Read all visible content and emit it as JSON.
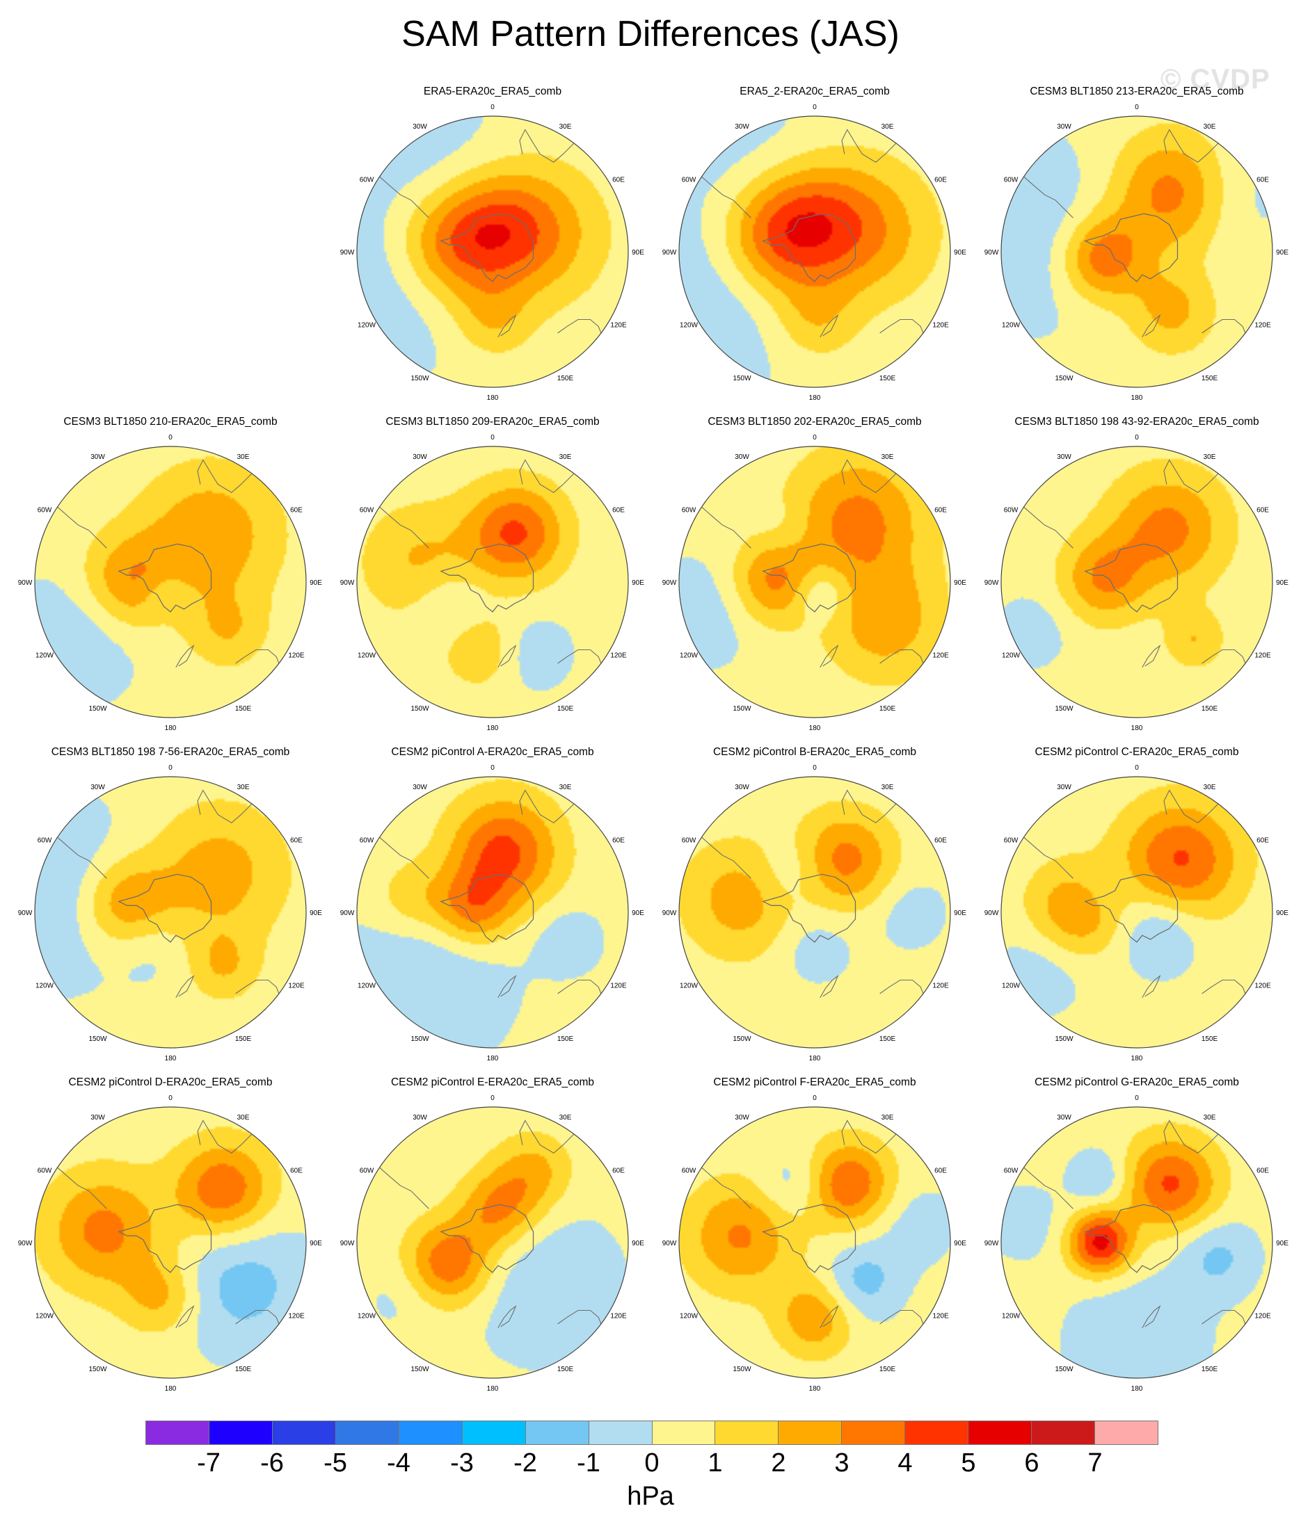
{
  "title": "SAM Pattern Differences (JAS)",
  "watermark": "© CVDP",
  "units": "hPa",
  "lon_labels": [
    "0",
    "30E",
    "60E",
    "90E",
    "120E",
    "150E",
    "180",
    "150W",
    "120W",
    "90W",
    "60W",
    "30W"
  ],
  "colors": {
    "land_outline": "#6e6e6e",
    "circle": "#444444",
    "background_level": "#fff58f"
  },
  "colorbar": {
    "colors": [
      "#8a2be2",
      "#1e00ff",
      "#2b3fe6",
      "#3078e6",
      "#1e90ff",
      "#00bfff",
      "#73c7f2",
      "#b2ddf1",
      "#fff58f",
      "#ffd92f",
      "#ffaa00",
      "#ff7700",
      "#ff3300",
      "#e60000",
      "#cc1a1a",
      "#ffaaaa"
    ],
    "ticks": [
      "-7",
      "-6",
      "-5",
      "-4",
      "-3",
      "-2",
      "-1",
      "0",
      "1",
      "2",
      "3",
      "4",
      "5",
      "6",
      "7"
    ]
  },
  "chart_data": {
    "type": "map",
    "projection": "south polar stereographic",
    "variable": "SAM pattern difference",
    "season": "JAS",
    "levels": [
      -7,
      -6,
      -5,
      -4,
      -3,
      -2,
      -1,
      0,
      1,
      2,
      3,
      4,
      5,
      6,
      7
    ],
    "units": "hPa",
    "panels": [
      {
        "title": "ERA5-ERA20c_ERA5_comb",
        "features": [
          {
            "kind": "low",
            "lon": -75,
            "colat": 0.78,
            "amp": -1.2,
            "width": 0.5
          },
          {
            "kind": "low",
            "lon": -150,
            "colat": 0.85,
            "amp": -0.8,
            "width": 0.4
          },
          {
            "kind": "high",
            "lon": -100,
            "colat": 0.3,
            "amp": 3.2,
            "width": 0.3
          },
          {
            "kind": "high",
            "lon": 110,
            "colat": 0.35,
            "amp": 2.0,
            "width": 0.35
          },
          {
            "kind": "high",
            "lon": 160,
            "colat": 0.2,
            "amp": 2.2,
            "width": 0.3
          },
          {
            "kind": "high",
            "lon": 0,
            "colat": 0.5,
            "amp": 1.5,
            "width": 0.2
          }
        ]
      },
      {
        "title": "ERA5_2-ERA20c_ERA5_comb",
        "features": [
          {
            "kind": "low",
            "lon": -70,
            "colat": 0.75,
            "amp": -1.2,
            "width": 0.55
          },
          {
            "kind": "low",
            "lon": -150,
            "colat": 0.9,
            "amp": -0.7,
            "width": 0.4
          },
          {
            "kind": "high",
            "lon": -110,
            "colat": 0.3,
            "amp": 3.3,
            "width": 0.3
          },
          {
            "kind": "high",
            "lon": 110,
            "colat": 0.4,
            "amp": 2.3,
            "width": 0.35
          },
          {
            "kind": "high",
            "lon": 180,
            "colat": 0.25,
            "amp": 2.2,
            "width": 0.32
          },
          {
            "kind": "high",
            "lon": 0,
            "colat": 0.5,
            "amp": 1.6,
            "width": 0.22
          }
        ]
      },
      {
        "title": "CESM3 BLT1850 213-ERA20c_ERA5_comb",
        "features": [
          {
            "kind": "low",
            "lon": -100,
            "colat": 0.8,
            "amp": -1.2,
            "width": 0.5
          },
          {
            "kind": "low",
            "lon": 120,
            "colat": 0.85,
            "amp": -0.8,
            "width": 0.3
          },
          {
            "kind": "high",
            "lon": -80,
            "colat": 0.25,
            "amp": 3.6,
            "width": 0.22
          },
          {
            "kind": "high",
            "lon": 150,
            "colat": 0.5,
            "amp": 3.2,
            "width": 0.3
          },
          {
            "kind": "high",
            "lon": 30,
            "colat": 0.5,
            "amp": 2.0,
            "width": 0.22
          }
        ]
      },
      {
        "title": "CESM3 BLT1850 210-ERA20c_ERA5_comb",
        "features": [
          {
            "kind": "low",
            "lon": -60,
            "colat": 0.8,
            "amp": -1.2,
            "width": 0.35
          },
          {
            "kind": "low",
            "lon": -20,
            "colat": 0.1,
            "amp": -1.1,
            "width": 0.12
          },
          {
            "kind": "high",
            "lon": -90,
            "colat": 0.3,
            "amp": 2.6,
            "width": 0.25
          },
          {
            "kind": "high",
            "lon": 140,
            "colat": 0.45,
            "amp": 2.5,
            "width": 0.35
          },
          {
            "kind": "high",
            "lon": 50,
            "colat": 0.55,
            "amp": 1.5,
            "width": 0.2
          }
        ]
      },
      {
        "title": "CESM3 BLT1850 209-ERA20c_ERA5_comb",
        "features": [
          {
            "kind": "low",
            "lon": -60,
            "colat": 0.35,
            "amp": -1.2,
            "width": 0.2
          },
          {
            "kind": "low",
            "lon": 30,
            "colat": 0.6,
            "amp": -1.1,
            "width": 0.2
          },
          {
            "kind": "high",
            "lon": 155,
            "colat": 0.4,
            "amp": 3.8,
            "width": 0.25
          },
          {
            "kind": "high",
            "lon": -105,
            "colat": 0.55,
            "amp": 1.8,
            "width": 0.3
          },
          {
            "kind": "high",
            "lon": -10,
            "colat": 0.5,
            "amp": 1.6,
            "width": 0.2
          }
        ]
      },
      {
        "title": "CESM3 BLT1850 202-ERA20c_ERA5_comb",
        "features": [
          {
            "kind": "low",
            "lon": 30,
            "colat": 0.1,
            "amp": -1.8,
            "width": 0.15
          },
          {
            "kind": "low",
            "lon": -75,
            "colat": 0.85,
            "amp": -1.0,
            "width": 0.3
          },
          {
            "kind": "low",
            "lon": -150,
            "colat": 0.45,
            "amp": -0.6,
            "width": 0.15
          },
          {
            "kind": "high",
            "lon": 145,
            "colat": 0.55,
            "amp": 3.0,
            "width": 0.35
          },
          {
            "kind": "high",
            "lon": -90,
            "colat": 0.3,
            "amp": 2.8,
            "width": 0.22
          },
          {
            "kind": "high",
            "lon": 60,
            "colat": 0.6,
            "amp": 2.2,
            "width": 0.3
          }
        ]
      },
      {
        "title": "CESM3 BLT1850 198 43-92-ERA20c_ERA5_comb",
        "features": [
          {
            "kind": "low",
            "lon": -65,
            "colat": 0.85,
            "amp": -0.9,
            "width": 0.2
          },
          {
            "kind": "high",
            "lon": 150,
            "colat": 0.45,
            "amp": 3.0,
            "width": 0.3
          },
          {
            "kind": "high",
            "lon": -95,
            "colat": 0.25,
            "amp": 2.6,
            "width": 0.22
          },
          {
            "kind": "high",
            "lon": 45,
            "colat": 0.6,
            "amp": 1.6,
            "width": 0.15
          }
        ]
      },
      {
        "title": "CESM3 BLT1850 198 7-56-ERA20c_ERA5_comb",
        "features": [
          {
            "kind": "low",
            "lon": -100,
            "colat": 0.8,
            "amp": -1.6,
            "width": 0.45
          },
          {
            "kind": "low",
            "lon": -30,
            "colat": 0.3,
            "amp": -0.8,
            "width": 0.2
          },
          {
            "kind": "high",
            "lon": -100,
            "colat": 0.35,
            "amp": 3.0,
            "width": 0.25
          },
          {
            "kind": "high",
            "lon": 130,
            "colat": 0.45,
            "amp": 2.2,
            "width": 0.35
          },
          {
            "kind": "high",
            "lon": 45,
            "colat": 0.55,
            "amp": 1.6,
            "width": 0.18
          }
        ]
      },
      {
        "title": "CESM2 piControl A-ERA20c_ERA5_comb",
        "features": [
          {
            "kind": "low",
            "lon": -45,
            "colat": 0.7,
            "amp": -1.3,
            "width": 0.45
          },
          {
            "kind": "low",
            "lon": 70,
            "colat": 0.6,
            "amp": -1.0,
            "width": 0.18
          },
          {
            "kind": "high",
            "lon": 170,
            "colat": 0.45,
            "amp": 4.0,
            "width": 0.28
          },
          {
            "kind": "high",
            "lon": -100,
            "colat": 0.15,
            "amp": 2.9,
            "width": 0.2
          },
          {
            "kind": "high",
            "lon": -100,
            "colat": 0.6,
            "amp": 1.5,
            "width": 0.2
          }
        ]
      },
      {
        "title": "CESM2 piControl B-ERA20c_ERA5_comb",
        "features": [
          {
            "kind": "low",
            "lon": -150,
            "colat": 0.35,
            "amp": -1.2,
            "width": 0.18
          },
          {
            "kind": "low",
            "lon": 0,
            "colat": 0.25,
            "amp": -1.0,
            "width": 0.2
          },
          {
            "kind": "low",
            "lon": 90,
            "colat": 0.7,
            "amp": -0.9,
            "width": 0.2
          },
          {
            "kind": "high",
            "lon": 150,
            "colat": 0.45,
            "amp": 3.0,
            "width": 0.25
          },
          {
            "kind": "high",
            "lon": -100,
            "colat": 0.55,
            "amp": 2.2,
            "width": 0.3
          }
        ]
      },
      {
        "title": "CESM2 piControl C-ERA20c_ERA5_comb",
        "features": [
          {
            "kind": "low",
            "lon": 50,
            "colat": 0.2,
            "amp": -1.8,
            "width": 0.22
          },
          {
            "kind": "low",
            "lon": -60,
            "colat": 0.8,
            "amp": -1.1,
            "width": 0.25
          },
          {
            "kind": "low",
            "lon": -130,
            "colat": 0.3,
            "amp": -0.8,
            "width": 0.15
          },
          {
            "kind": "high",
            "lon": 140,
            "colat": 0.5,
            "amp": 3.8,
            "width": 0.3
          },
          {
            "kind": "high",
            "lon": -90,
            "colat": 0.45,
            "amp": 2.7,
            "width": 0.25
          }
        ]
      },
      {
        "title": "CESM2 piControl D-ERA20c_ERA5_comb",
        "features": [
          {
            "kind": "low",
            "lon": 60,
            "colat": 0.6,
            "amp": -1.8,
            "width": 0.35
          },
          {
            "kind": "high",
            "lon": 135,
            "colat": 0.55,
            "amp": 3.6,
            "width": 0.25
          },
          {
            "kind": "high",
            "lon": -100,
            "colat": 0.5,
            "amp": 3.0,
            "width": 0.3
          },
          {
            "kind": "high",
            "lon": -10,
            "colat": 0.4,
            "amp": 2.0,
            "width": 0.2
          }
        ]
      },
      {
        "title": "CESM2 piControl E-ERA20c_ERA5_comb",
        "features": [
          {
            "kind": "low",
            "lon": 50,
            "colat": 0.5,
            "amp": -1.2,
            "width": 0.4
          },
          {
            "kind": "low",
            "lon": -60,
            "colat": 0.8,
            "amp": -0.6,
            "width": 0.2
          },
          {
            "kind": "high",
            "lon": -65,
            "colat": 0.35,
            "amp": 3.6,
            "width": 0.22
          },
          {
            "kind": "high",
            "lon": 170,
            "colat": 0.25,
            "amp": 2.8,
            "width": 0.2
          },
          {
            "kind": "high",
            "lon": 150,
            "colat": 0.6,
            "amp": 2.0,
            "width": 0.2
          }
        ]
      },
      {
        "title": "CESM2 piControl F-ERA20c_ERA5_comb",
        "features": [
          {
            "kind": "low",
            "lon": 50,
            "colat": 0.45,
            "amp": -1.8,
            "width": 0.2
          },
          {
            "kind": "low",
            "lon": -160,
            "colat": 0.45,
            "amp": -1.3,
            "width": 0.18
          },
          {
            "kind": "low",
            "lon": 100,
            "colat": 0.75,
            "amp": -0.9,
            "width": 0.22
          },
          {
            "kind": "high",
            "lon": 150,
            "colat": 0.5,
            "amp": 3.6,
            "width": 0.22
          },
          {
            "kind": "high",
            "lon": -95,
            "colat": 0.55,
            "amp": 2.8,
            "width": 0.28
          },
          {
            "kind": "high",
            "lon": 0,
            "colat": 0.55,
            "amp": 2.5,
            "width": 0.2
          }
        ]
      },
      {
        "title": "CESM2 piControl G-ERA20c_ERA5_comb",
        "features": [
          {
            "kind": "low",
            "lon": 0,
            "colat": 0.75,
            "amp": -1.3,
            "width": 0.35
          },
          {
            "kind": "low",
            "lon": 80,
            "colat": 0.6,
            "amp": -1.6,
            "width": 0.2
          },
          {
            "kind": "low",
            "lon": -150,
            "colat": 0.55,
            "amp": -1.5,
            "width": 0.15
          },
          {
            "kind": "low",
            "lon": -100,
            "colat": 0.85,
            "amp": -0.9,
            "width": 0.2
          },
          {
            "kind": "high",
            "lon": -90,
            "colat": 0.27,
            "amp": 5.0,
            "width": 0.16
          },
          {
            "kind": "high",
            "lon": 150,
            "colat": 0.5,
            "amp": 3.8,
            "width": 0.24
          }
        ]
      }
    ]
  }
}
